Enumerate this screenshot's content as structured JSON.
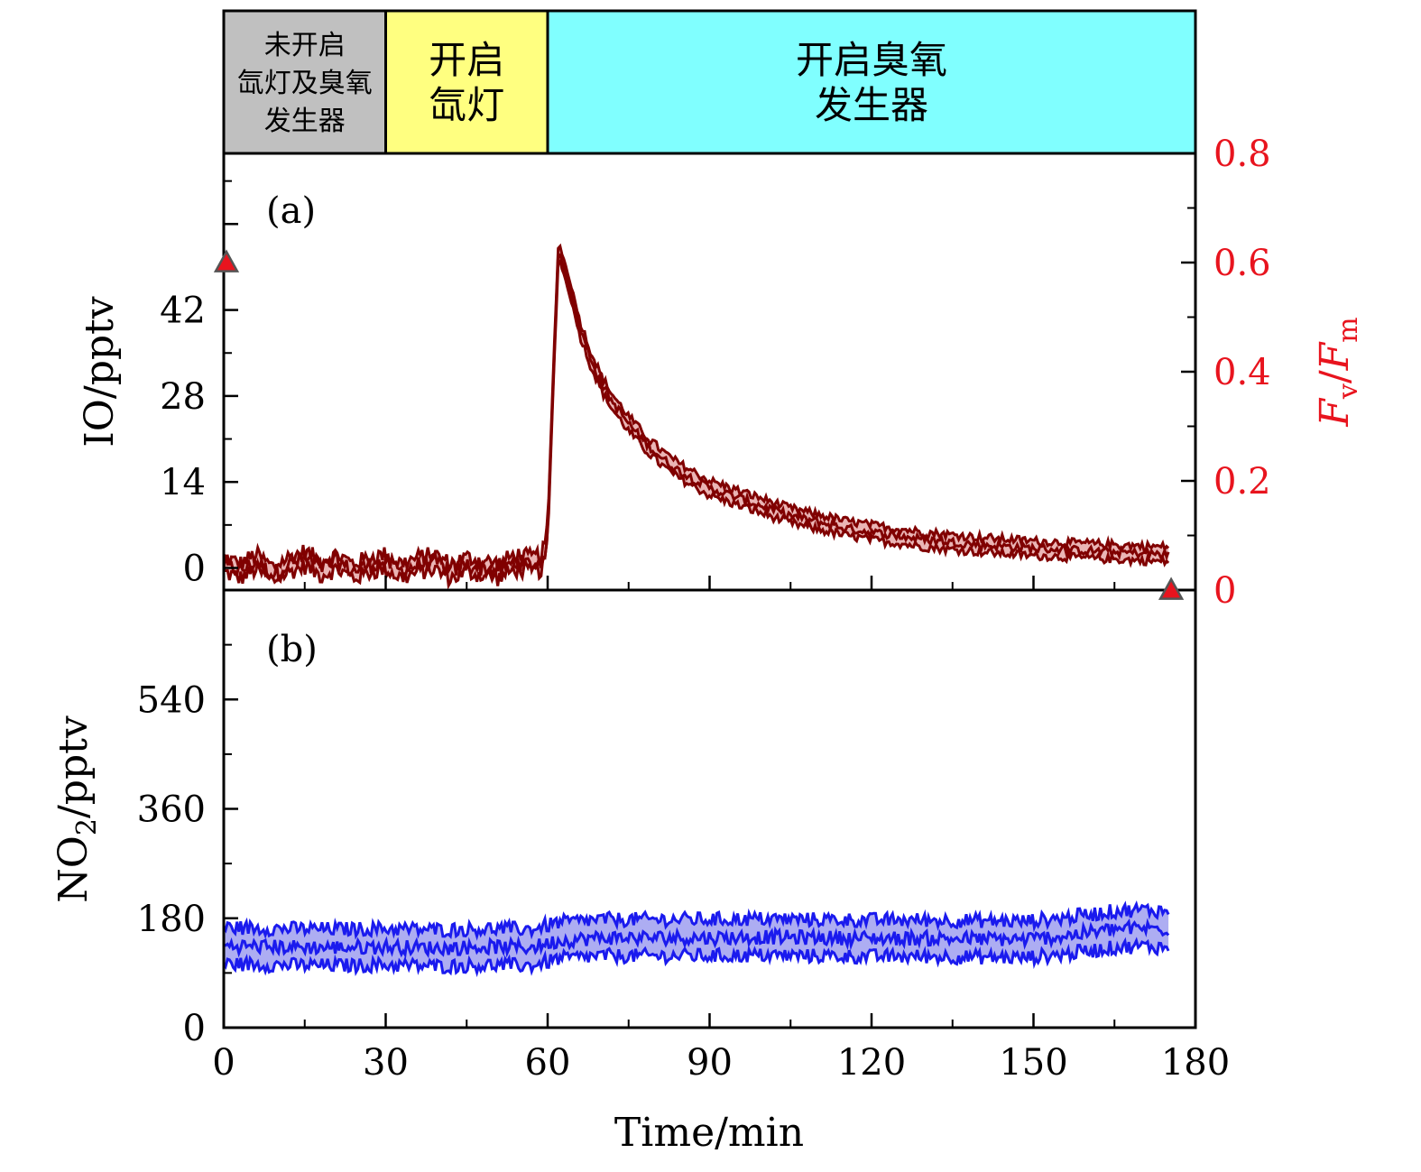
{
  "phases": [
    {
      "label_lines": [
        "未开启",
        "氙灯及臭氧",
        "发生器"
      ],
      "x_start": 0,
      "x_end": 30,
      "color": "#c0c0c0"
    },
    {
      "label_lines": [
        "开启",
        "氙灯"
      ],
      "x_start": 30,
      "x_end": 60,
      "color": "#ffff80"
    },
    {
      "label_lines": [
        "开启臭氧",
        "发生器"
      ],
      "x_start": 60,
      "x_end": 180,
      "color": "#80ffff"
    }
  ],
  "colors": {
    "io": "#800000",
    "io_fill": "#e6a8a8",
    "no2": "#1a1aee",
    "no2_fill": "#9f9ff0",
    "fvfm": "#e8141e",
    "marker": "#e8141e",
    "axis": "#000000"
  },
  "x_axis": {
    "label": "Time/min",
    "range": [
      0,
      180
    ],
    "ticks": [
      0,
      30,
      60,
      90,
      120,
      150,
      180
    ],
    "tick_labels": [
      "0",
      "30",
      "60",
      "90",
      "120",
      "150",
      "180"
    ]
  },
  "panel_a": {
    "tag": "(a)",
    "ylabel": "IO/pptv",
    "yrange": [
      -3.6,
      67.5
    ],
    "yticks": [
      0,
      14,
      28,
      42
    ],
    "ytick_labels": [
      "0",
      "14",
      "28",
      "42"
    ],
    "right_axis": {
      "label_main_1": "F",
      "label_sub_1": "v",
      "label_slash": "/",
      "label_main_2": "F",
      "label_sub_2": "m",
      "range": [
        0,
        0.8
      ],
      "ticks": [
        0,
        0.2,
        0.4,
        0.6,
        0.8
      ],
      "tick_labels": [
        "0",
        "0.2",
        "0.4",
        "0.6",
        "0.8"
      ]
    }
  },
  "panel_b": {
    "tag": "(b)",
    "ylabel_main": "NO",
    "ylabel_sub": "2",
    "ylabel_unit": "/pptv",
    "yrange": [
      0,
      720
    ],
    "yticks": [
      0,
      180,
      360,
      540
    ],
    "ytick_labels": [
      "0",
      "180",
      "360",
      "540"
    ]
  },
  "chart_data": [
    {
      "type": "area",
      "name": "IO",
      "x": [
        0,
        3,
        6,
        9,
        12,
        15,
        18,
        21,
        24,
        27,
        30,
        33,
        36,
        39,
        42,
        45,
        48,
        51,
        54,
        57,
        59,
        60,
        61,
        62,
        64,
        66,
        68,
        70,
        72,
        75,
        78,
        81,
        84,
        87,
        90,
        95,
        100,
        105,
        110,
        115,
        120,
        125,
        130,
        135,
        140,
        145,
        150,
        155,
        160,
        165,
        170,
        175
      ],
      "y": [
        0.5,
        -0.5,
        1.0,
        -1.0,
        0.5,
        1.5,
        0.0,
        1.0,
        -0.5,
        0.5,
        1.0,
        -0.5,
        0.5,
        1.0,
        -0.5,
        0.5,
        0.0,
        -0.5,
        1.0,
        0.5,
        1.0,
        5.0,
        30.0,
        52.0,
        46.0,
        39.0,
        34.0,
        30.0,
        27.0,
        23.5,
        20.5,
        18.0,
        16.0,
        14.5,
        13.0,
        11.5,
        10.0,
        8.5,
        7.5,
        6.5,
        5.8,
        5.2,
        4.6,
        4.2,
        3.8,
        3.5,
        3.2,
        3.0,
        2.8,
        2.6,
        2.4,
        2.2
      ],
      "band_halfwidth": 1.2
    },
    {
      "type": "area",
      "name": "NO2",
      "x": [
        0,
        10,
        20,
        30,
        40,
        50,
        57,
        62,
        70,
        80,
        90,
        100,
        110,
        120,
        130,
        140,
        148,
        155,
        160,
        165,
        170,
        175
      ],
      "y": [
        135,
        133,
        132,
        133,
        131,
        133,
        132,
        143,
        148,
        148,
        148,
        149,
        148,
        147,
        147,
        146,
        145,
        150,
        156,
        162,
        164,
        162
      ],
      "band_halfwidth": 30
    },
    {
      "type": "scatter",
      "name": "Fv/Fm",
      "x": [
        0.5,
        175.5
      ],
      "y": [
        0.6,
        0.0
      ]
    }
  ]
}
